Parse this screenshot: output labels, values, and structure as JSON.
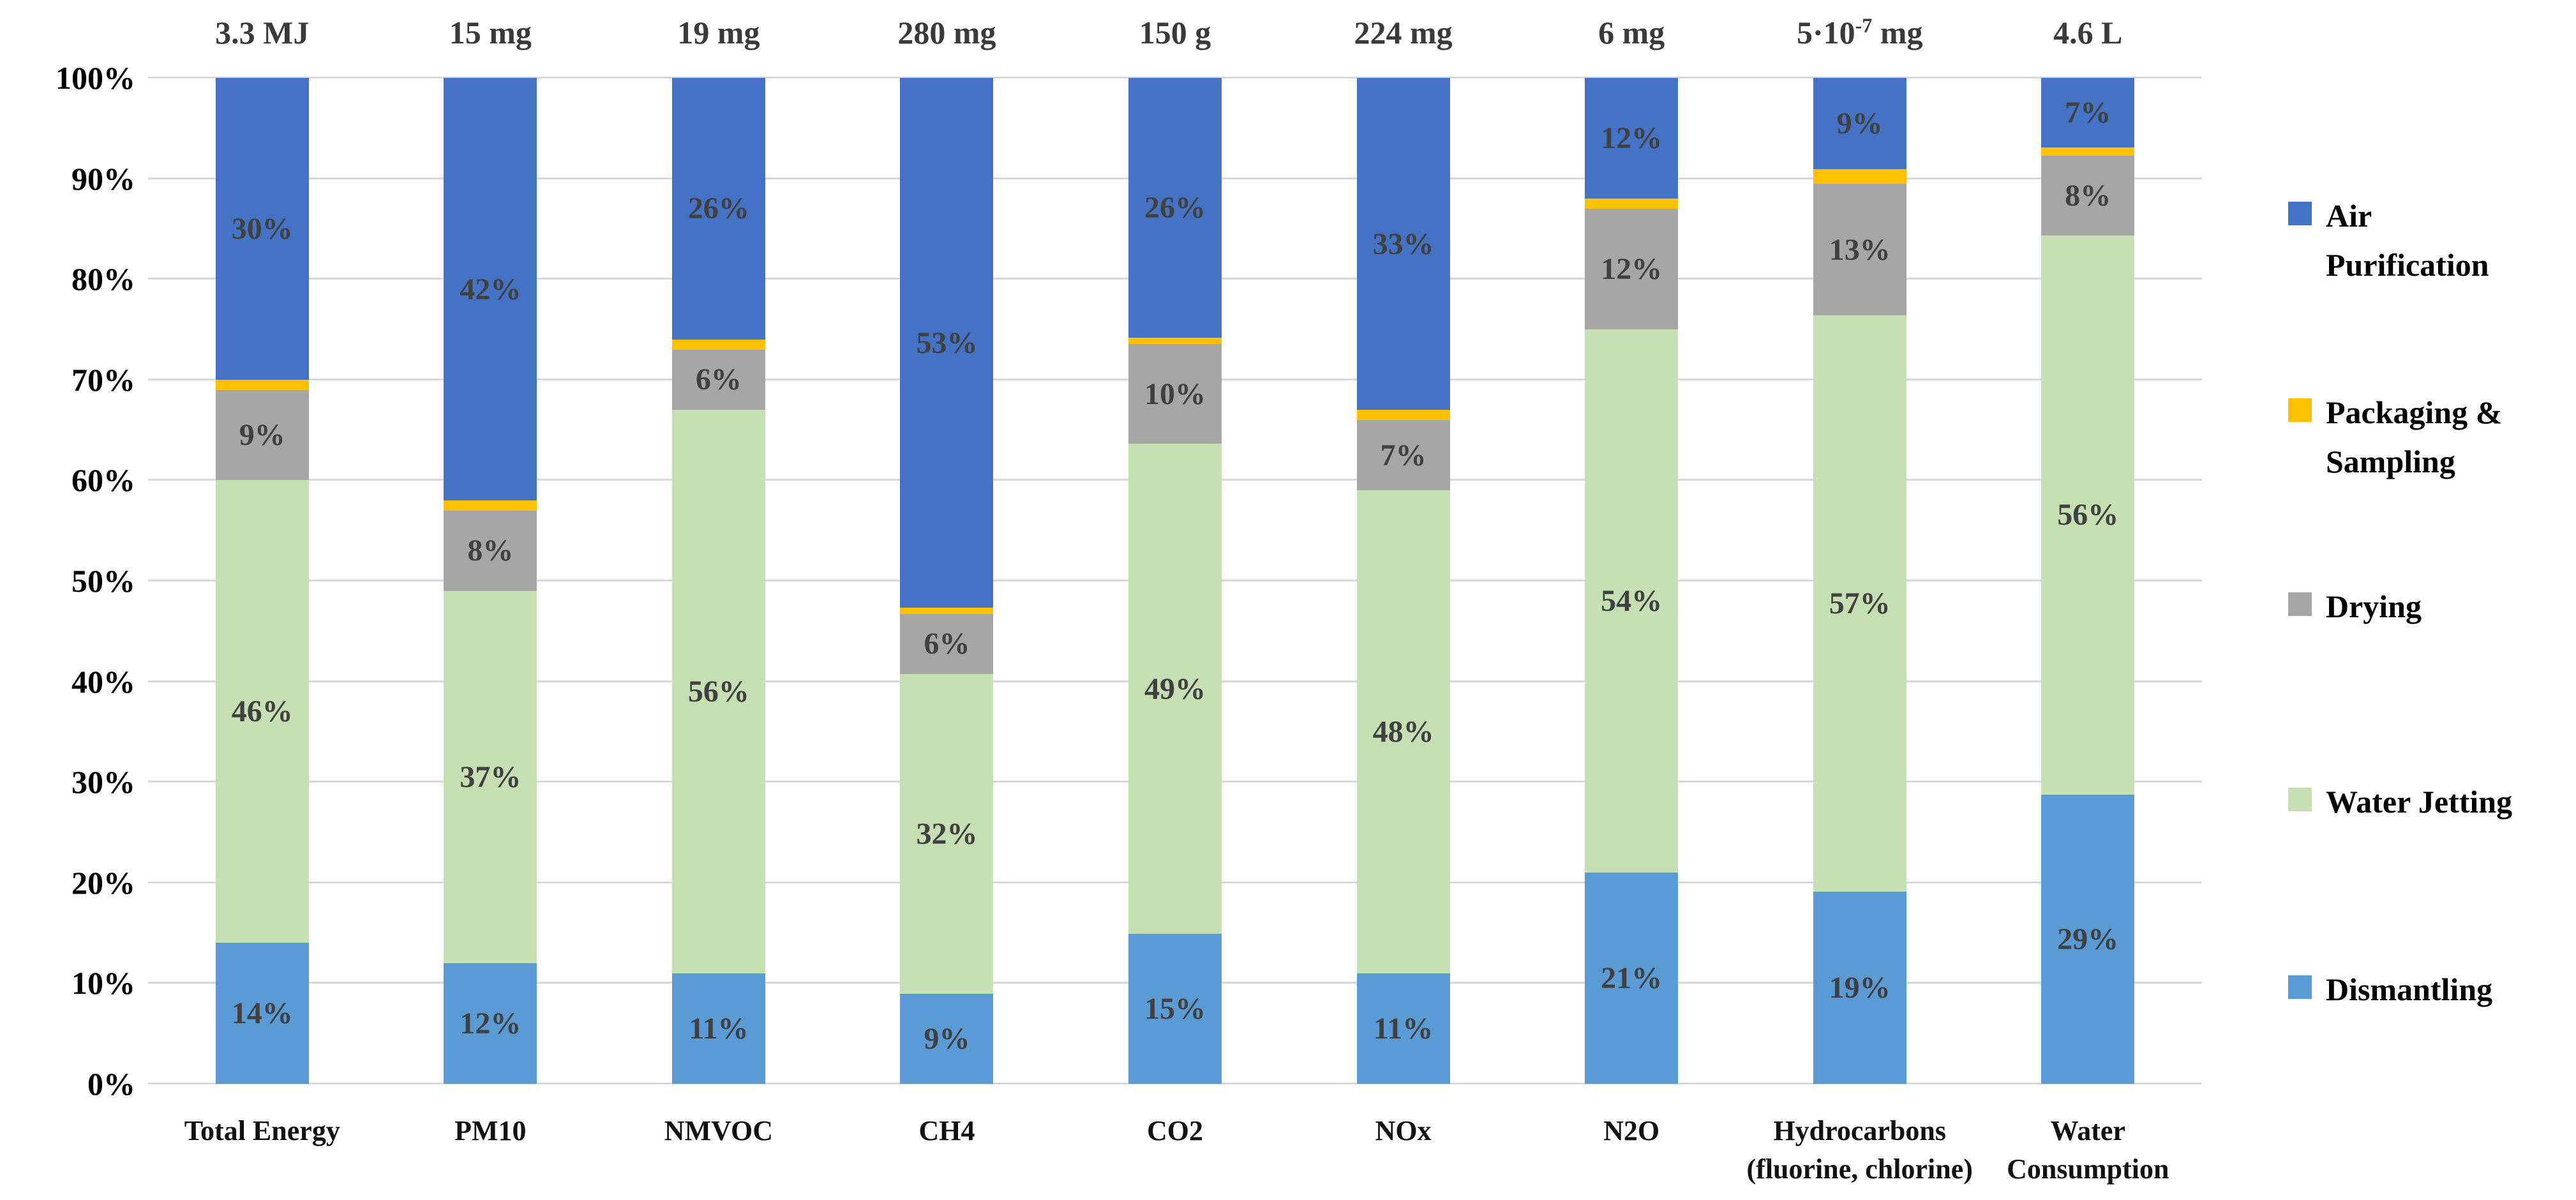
{
  "figure": {
    "background": "#ffffff",
    "gridline_color": "#d9d9d9",
    "segment_label_color": "#404040"
  },
  "chart_data": {
    "type": "bar",
    "stacked": "100%",
    "legend_position": "right",
    "y_axis": {
      "min": 0,
      "max": 100,
      "gridlines": true,
      "tick_labels": [
        "0%",
        "10%",
        "20%",
        "30%",
        "40%",
        "50%",
        "60%",
        "70%",
        "80%",
        "90%",
        "100%"
      ]
    },
    "categories": [
      {
        "label_lines": [
          "Total Energy"
        ],
        "total": {
          "base": "3.3 MJ"
        }
      },
      {
        "label_lines": [
          "PM10"
        ],
        "total": {
          "base": "15 mg"
        }
      },
      {
        "label_lines": [
          "NMVOC"
        ],
        "total": {
          "base": "19 mg"
        }
      },
      {
        "label_lines": [
          "CH4"
        ],
        "total": {
          "base": "280 mg"
        }
      },
      {
        "label_lines": [
          "CO2"
        ],
        "total": {
          "base": "150 g"
        }
      },
      {
        "label_lines": [
          "NOx"
        ],
        "total": {
          "base": "224 mg"
        }
      },
      {
        "label_lines": [
          "N2O"
        ],
        "total": {
          "base": "6 mg"
        }
      },
      {
        "label_lines": [
          "Hydrocarbons",
          "(fluorine, chlorine)"
        ],
        "total": {
          "base": "5·10",
          "sup": "-7",
          "rest": " mg"
        }
      },
      {
        "label_lines": [
          "Water",
          "Consumption"
        ],
        "total": {
          "base": "4.6 L"
        }
      }
    ],
    "series": [
      {
        "name": "Dismantling",
        "color": "#5B9BD5",
        "values": [
          14,
          12,
          11,
          9,
          15,
          11,
          21,
          19,
          29
        ],
        "labels": [
          "14%",
          "12%",
          "11%",
          "9%",
          "15%",
          "11%",
          "21%",
          "19%",
          "29%"
        ]
      },
      {
        "name": "Water Jetting",
        "color": "#C6E0B4",
        "values": [
          46,
          37,
          56,
          32,
          49,
          48,
          54,
          57,
          56
        ],
        "labels": [
          "46%",
          "37%",
          "56%",
          "32%",
          "49%",
          "48%",
          "54%",
          "57%",
          "56%"
        ]
      },
      {
        "name": "Drying",
        "color": "#A6A6A6",
        "values": [
          9,
          8,
          6,
          6,
          10,
          7,
          12,
          13,
          8
        ],
        "labels": [
          "9%",
          "8%",
          "6%",
          "6%",
          "10%",
          "7%",
          "12%",
          "13%",
          "8%"
        ]
      },
      {
        "name": "Packaging & Sampling",
        "color": "#FFC000",
        "values": [
          1,
          1,
          1,
          0.6,
          0.6,
          1,
          1,
          1.5,
          0.8
        ],
        "labels": [
          null,
          null,
          null,
          null,
          null,
          null,
          null,
          null,
          null
        ]
      },
      {
        "name": "Air Purification",
        "color": "#4472C4",
        "values": [
          30,
          42,
          26,
          53,
          26,
          33,
          12,
          9,
          7
        ],
        "labels": [
          "30%",
          "42%",
          "26%",
          "53%",
          "26%",
          "33%",
          "12%",
          "9%",
          "7%"
        ]
      }
    ],
    "legend": [
      {
        "label_lines": [
          "Air",
          "Purification"
        ],
        "color": "#4472C4"
      },
      {
        "label_lines": [
          "Packaging &",
          "Sampling"
        ],
        "color": "#FFC000"
      },
      {
        "label_lines": [
          "Drying"
        ],
        "color": "#A6A6A6"
      },
      {
        "label_lines": [
          "Water Jetting"
        ],
        "color": "#C6E0B4"
      },
      {
        "label_lines": [
          "Dismantling"
        ],
        "color": "#5B9BD5"
      }
    ]
  }
}
